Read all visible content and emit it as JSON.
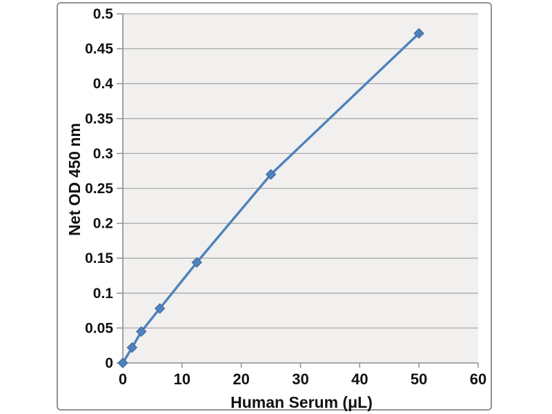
{
  "chart_data": {
    "type": "line",
    "title": "",
    "xlabel": "Human Serum (μL)",
    "ylabel": "Net OD 450 nm",
    "xlim": [
      0,
      60
    ],
    "ylim": [
      0,
      0.5
    ],
    "grid": "horizontal",
    "legend": "none",
    "xticks": {
      "values": [
        0,
        10,
        20,
        30,
        40,
        50,
        60
      ],
      "labels": [
        "0",
        "10",
        "20",
        "30",
        "40",
        "50",
        "60"
      ]
    },
    "yticks": {
      "values": [
        0,
        0.05,
        0.1,
        0.15,
        0.2,
        0.25,
        0.3,
        0.35,
        0.4,
        0.45,
        0.5
      ],
      "labels": [
        "0",
        "0.05",
        "0.1",
        "0.15",
        "0.2",
        "0.25",
        "0.3",
        "0.35",
        "0.4",
        "0.45",
        "0.5"
      ]
    },
    "series": [
      {
        "marker": "diamond",
        "x": [
          0,
          1.5625,
          3.125,
          6.25,
          12.5,
          25,
          50
        ],
        "y": [
          0,
          0.022,
          0.045,
          0.078,
          0.144,
          0.27,
          0.472
        ]
      }
    ],
    "colors": {
      "line": "#4f81bd",
      "marker_fill": "#4f81bd",
      "marker_edge": "#3a6699",
      "plot_background": "#f1f0ee",
      "gridline": "#a9a9a9",
      "axis": "#8c8c8c",
      "frame_border": "#919191",
      "text": "#111111",
      "page_background": "#ffffff"
    }
  }
}
